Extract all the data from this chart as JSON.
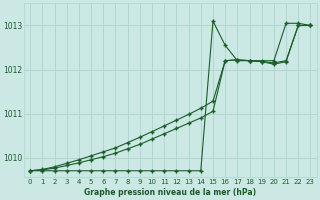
{
  "bg_color": "#cce8e4",
  "grid_color": "#aed4ce",
  "line_color": "#1a5c2a",
  "title": "Graphe pression niveau de la mer (hPa)",
  "ylabel_ticks": [
    1010,
    1011,
    1012,
    1013
  ],
  "xlim": [
    -0.5,
    23.5
  ],
  "ylim": [
    1009.55,
    1013.5
  ],
  "hours": [
    0,
    1,
    2,
    3,
    4,
    5,
    6,
    7,
    8,
    9,
    10,
    11,
    12,
    13,
    14,
    15,
    16,
    17,
    18,
    19,
    20,
    21,
    22,
    23
  ],
  "series1_flat": [
    1009.7,
    1009.7,
    1009.7,
    1009.7,
    1009.7,
    1009.7,
    1009.7,
    1009.7,
    1009.7,
    1009.7,
    1009.7,
    1009.7,
    1009.7,
    1009.7,
    1009.7,
    1013.1,
    1012.55,
    1012.2,
    1012.2,
    1012.2,
    1012.2,
    1013.05,
    1013.05,
    1013.0
  ],
  "series2_diag1": [
    1009.7,
    1009.72,
    1009.76,
    1009.82,
    1009.88,
    1009.95,
    1010.02,
    1010.1,
    1010.2,
    1010.3,
    1010.42,
    1010.54,
    1010.66,
    1010.78,
    1010.9,
    1011.05,
    1012.2,
    1012.22,
    1012.2,
    1012.18,
    1012.15,
    1012.2,
    1013.0,
    1013.0
  ],
  "series3_diag2": [
    1009.7,
    1009.73,
    1009.79,
    1009.87,
    1009.95,
    1010.04,
    1010.13,
    1010.22,
    1010.34,
    1010.46,
    1010.59,
    1010.72,
    1010.85,
    1010.98,
    1011.12,
    1011.28,
    1012.2,
    1012.22,
    1012.2,
    1012.18,
    1012.12,
    1012.18,
    1013.0,
    1013.0
  ]
}
